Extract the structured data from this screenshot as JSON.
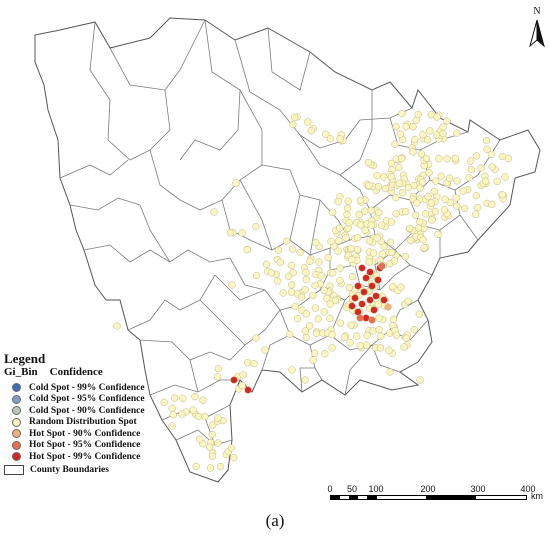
{
  "legend": {
    "title": "Legend",
    "field": "Gi_Bin",
    "field_sub": "Confidence",
    "items": [
      {
        "label": "Cold Spot - 99% Confidence",
        "color": "#3b6fb6"
      },
      {
        "label": "Cold Spot - 95% Confidence",
        "color": "#7f9fc8"
      },
      {
        "label": "Cold Spot - 90% Confidence",
        "color": "#b9c8b6"
      },
      {
        "label": "Random Distribution Spot",
        "color": "#fbf6c0"
      },
      {
        "label": "Hot Spot - 90% Confidence",
        "color": "#f2b17b"
      },
      {
        "label": "Hot Spot - 95% Confidence",
        "color": "#e8704f"
      },
      {
        "label": "Hot Spot - 99% Confidence",
        "color": "#d7261f"
      }
    ],
    "boundary_label": "County Boundaries"
  },
  "scale": {
    "ticks": [
      "0",
      "50",
      "100",
      "200",
      "300",
      "400"
    ],
    "unit": "km"
  },
  "north": {
    "label": "N"
  },
  "caption": "(a)",
  "colors": {
    "random": "#fbf6c0",
    "hot90": "#f2b17b",
    "hot95": "#e8704f",
    "hot99": "#d7261f",
    "boundary": "#555555"
  }
}
